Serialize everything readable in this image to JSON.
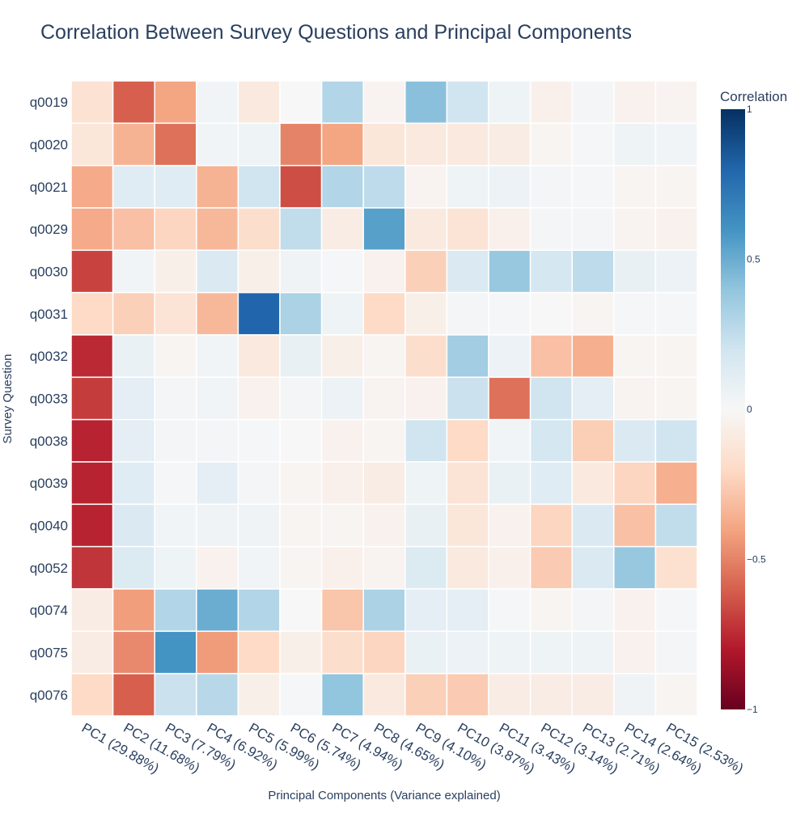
{
  "chart_data": {
    "type": "heatmap",
    "title": "Correlation Between Survey Questions and Principal Components",
    "xlabel": "Principal Components (Variance explained)",
    "ylabel": "Survey Question",
    "x_categories": [
      "PC1 (29.88%)",
      "PC2 (11.68%)",
      "PC3 (7.79%)",
      "PC4 (6.92%)",
      "PC5 (5.99%)",
      "PC6 (5.74%)",
      "PC7 (4.94%)",
      "PC8 (4.65%)",
      "PC9 (4.10%)",
      "PC10 (3.87%)",
      "PC11 (3.43%)",
      "PC12 (3.14%)",
      "PC13 (2.71%)",
      "PC14 (2.64%)",
      "PC15 (2.53%)"
    ],
    "y_categories": [
      "q0019",
      "q0020",
      "q0021",
      "q0029",
      "q0030",
      "q0031",
      "q0032",
      "q0033",
      "q0038",
      "q0039",
      "q0040",
      "q0052",
      "q0074",
      "q0075",
      "q0076"
    ],
    "z": [
      [
        -0.15,
        -0.6,
        -0.4,
        0.03,
        -0.1,
        0.0,
        0.3,
        -0.03,
        0.42,
        0.2,
        0.05,
        -0.05,
        0.02,
        -0.04,
        -0.03
      ],
      [
        -0.12,
        -0.35,
        -0.55,
        0.03,
        0.05,
        -0.5,
        -0.4,
        -0.12,
        -0.1,
        -0.1,
        -0.08,
        -0.02,
        0.01,
        0.05,
        0.03
      ],
      [
        -0.38,
        0.12,
        0.12,
        -0.35,
        0.2,
        -0.65,
        0.3,
        0.26,
        -0.03,
        0.05,
        0.06,
        0.02,
        0.01,
        -0.02,
        -0.02
      ],
      [
        -0.38,
        -0.3,
        -0.22,
        -0.33,
        -0.18,
        0.25,
        -0.08,
        0.55,
        -0.1,
        -0.14,
        -0.05,
        0.02,
        0.02,
        -0.03,
        -0.04
      ],
      [
        -0.68,
        0.03,
        -0.06,
        0.15,
        -0.06,
        0.04,
        0.01,
        -0.04,
        -0.24,
        0.15,
        0.38,
        0.18,
        0.26,
        0.08,
        0.06
      ],
      [
        -0.2,
        -0.24,
        -0.14,
        -0.33,
        0.8,
        0.32,
        0.05,
        -0.2,
        -0.06,
        0.02,
        0.01,
        0.0,
        -0.02,
        0.01,
        0.01
      ],
      [
        -0.75,
        0.07,
        -0.02,
        0.03,
        -0.1,
        0.08,
        -0.06,
        -0.02,
        -0.18,
        0.35,
        0.06,
        -0.3,
        -0.36,
        -0.02,
        -0.02
      ],
      [
        -0.7,
        0.1,
        0.02,
        0.03,
        -0.04,
        0.02,
        0.06,
        -0.03,
        -0.04,
        0.22,
        -0.55,
        0.2,
        0.1,
        -0.03,
        -0.02
      ],
      [
        -0.77,
        0.1,
        0.02,
        0.02,
        0.01,
        0.0,
        -0.04,
        -0.02,
        0.2,
        -0.2,
        0.03,
        0.18,
        -0.25,
        0.15,
        0.2
      ],
      [
        -0.77,
        0.12,
        0.01,
        0.1,
        0.02,
        -0.02,
        -0.05,
        -0.08,
        0.05,
        -0.14,
        0.07,
        0.12,
        -0.1,
        -0.22,
        -0.36
      ],
      [
        -0.77,
        0.15,
        0.03,
        0.04,
        0.04,
        -0.02,
        -0.02,
        -0.04,
        0.08,
        -0.12,
        -0.04,
        -0.22,
        0.15,
        -0.3,
        0.25
      ],
      [
        -0.72,
        0.14,
        0.05,
        -0.04,
        0.03,
        -0.02,
        -0.05,
        -0.03,
        0.14,
        -0.1,
        -0.05,
        -0.26,
        0.15,
        0.38,
        -0.16
      ],
      [
        -0.08,
        -0.42,
        0.3,
        0.5,
        0.3,
        0.0,
        -0.28,
        0.32,
        0.1,
        0.1,
        0.01,
        -0.02,
        0.02,
        -0.04,
        0.01
      ],
      [
        -0.08,
        -0.48,
        0.6,
        -0.43,
        -0.2,
        -0.06,
        -0.18,
        -0.22,
        0.07,
        0.06,
        0.05,
        0.05,
        0.05,
        -0.04,
        0.02
      ],
      [
        -0.2,
        -0.6,
        0.22,
        0.28,
        -0.06,
        0.01,
        0.4,
        -0.1,
        -0.24,
        -0.26,
        -0.08,
        -0.08,
        -0.08,
        0.04,
        -0.02
      ]
    ],
    "zmin": -1,
    "zmax": 1,
    "colorscale": [
      "#67001f",
      "#b2182b",
      "#d6604d",
      "#f4a582",
      "#fddbc7",
      "#f7f7f7",
      "#d1e5f0",
      "#92c5de",
      "#4393c3",
      "#2166ac",
      "#053061"
    ],
    "colorbar": {
      "title": "Correlation",
      "tick_values": [
        1,
        0.5,
        0,
        -0.5,
        -1
      ],
      "tick_labels": [
        "1",
        "0.5",
        "0",
        "−0.5",
        "−1"
      ]
    }
  }
}
